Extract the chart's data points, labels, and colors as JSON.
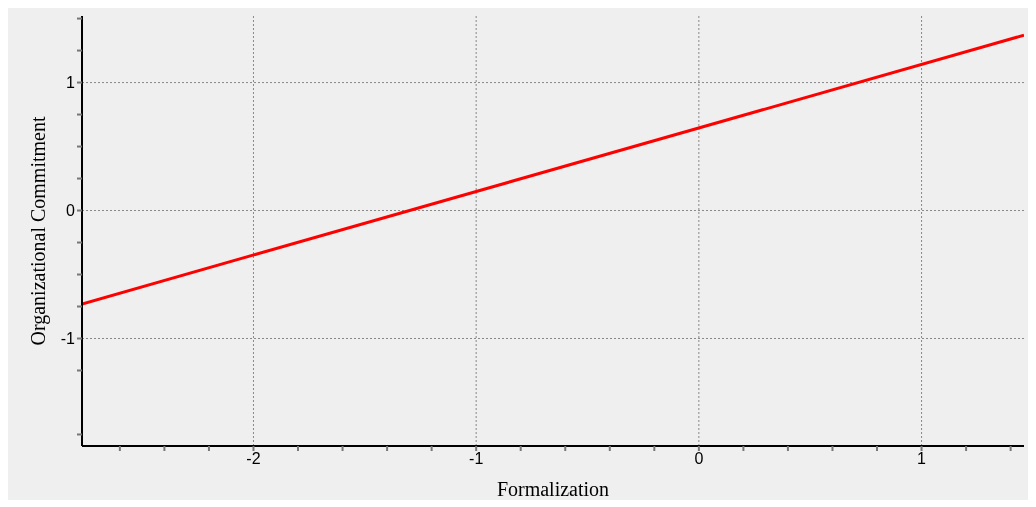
{
  "chart_data": {
    "type": "line",
    "xlabel": "Formalization",
    "ylabel": "Organizational Commitment",
    "x": [
      -2.77,
      1.46
    ],
    "series": [
      {
        "color": "#ff0000",
        "values": [
          -0.73,
          1.37
        ]
      }
    ],
    "xlim": [
      -2.77,
      1.46
    ],
    "xticks": [
      {
        "value": -2.6,
        "label": null
      },
      {
        "value": -2.4,
        "label": null
      },
      {
        "value": -2.2,
        "label": null
      },
      -2,
      {
        "value": -1.8,
        "label": null
      },
      {
        "value": -1.6,
        "label": null
      },
      {
        "value": -1.4,
        "label": null
      },
      {
        "value": -1.2,
        "label": null
      },
      -1,
      {
        "value": -0.8,
        "label": null
      },
      {
        "value": -0.6,
        "label": null
      },
      {
        "value": -0.4,
        "label": null
      },
      {
        "value": -0.2,
        "label": null
      },
      0,
      {
        "value": 0.2,
        "label": null
      },
      {
        "value": 0.4,
        "label": null
      },
      {
        "value": 0.6,
        "label": null
      },
      {
        "value": 0.8,
        "label": null
      },
      1,
      {
        "value": 1.2,
        "label": null
      },
      {
        "value": 1.4,
        "label": null
      }
    ],
    "ylim": [
      -1.84,
      1.52
    ],
    "yticks": [
      {
        "value": -1.75,
        "label": null
      },
      {
        "value": -1.25,
        "label": null
      },
      -1,
      {
        "value": -0.75,
        "label": null
      },
      {
        "value": -0.5,
        "label": null
      },
      {
        "value": -0.25,
        "label": null
      },
      0,
      {
        "value": 0.25,
        "label": null
      },
      {
        "value": 0.5,
        "label": null
      },
      {
        "value": 0.75,
        "label": null
      },
      1,
      {
        "value": 1.25,
        "label": null
      },
      {
        "value": 1.5,
        "label": null
      }
    ],
    "grid": true,
    "marker": "none",
    "line_style": "solid"
  }
}
